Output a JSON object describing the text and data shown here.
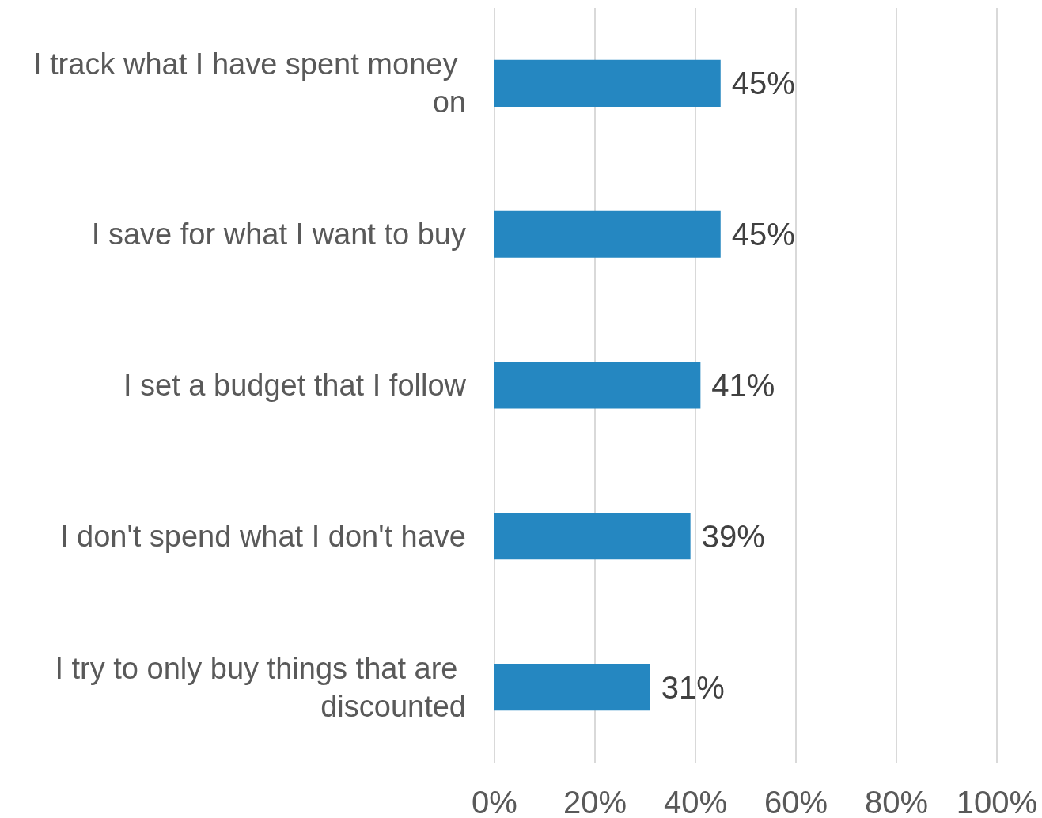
{
  "chart_data": {
    "type": "bar",
    "orientation": "horizontal",
    "categories": [
      "I track what I have spent money on",
      "I save for what I want to buy",
      "I set a budget that I follow",
      "I don't spend what I don't have",
      "I try to only buy things that are discounted"
    ],
    "values": [
      45,
      45,
      41,
      39,
      31
    ],
    "value_labels": [
      "45%",
      "45%",
      "41%",
      "39%",
      "31%"
    ],
    "color": "#2587c1",
    "xlim": [
      0,
      100
    ],
    "xticks": [
      {
        "value": 0,
        "label": "0%"
      },
      {
        "value": 20,
        "label": "20%"
      },
      {
        "value": 40,
        "label": "40%"
      },
      {
        "value": 60,
        "label": "60%"
      },
      {
        "value": 80,
        "label": "80%"
      },
      {
        "value": 100,
        "label": "100%"
      }
    ],
    "grid": "x"
  }
}
